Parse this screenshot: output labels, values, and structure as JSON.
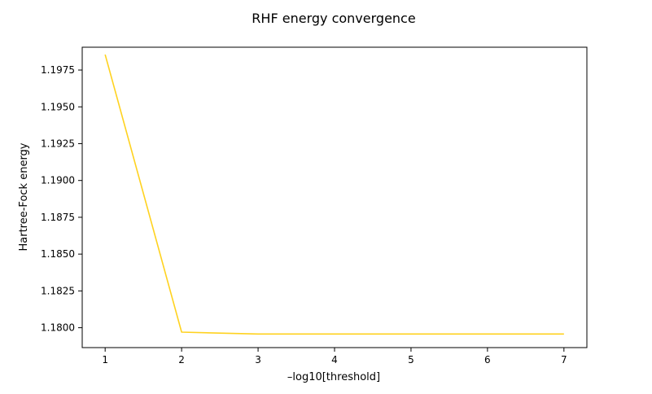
{
  "chart_data": {
    "type": "line",
    "title": "RHF energy convergence",
    "xlabel": "–log10[threshold]",
    "ylabel": "Hartree-Fock energy",
    "xlim": [
      0.7,
      7.3
    ],
    "ylim": [
      1.17865,
      1.19905
    ],
    "x_ticks": [
      1,
      2,
      3,
      4,
      5,
      6,
      7
    ],
    "x_tick_labels": [
      "1",
      "2",
      "3",
      "4",
      "5",
      "6",
      "7"
    ],
    "y_ticks": [
      1.18,
      1.1825,
      1.185,
      1.1875,
      1.19,
      1.1925,
      1.195,
      1.1975
    ],
    "y_tick_labels": [
      "1.1800",
      "1.1825",
      "1.1850",
      "1.1875",
      "1.1900",
      "1.1925",
      "1.1950",
      "1.1975"
    ],
    "grid": false,
    "legend": "none",
    "series": [
      {
        "x": [
          1,
          2,
          3,
          4,
          5,
          6,
          7
        ],
        "y": [
          1.19855,
          1.1797,
          1.17957,
          1.17957,
          1.17957,
          1.17957,
          1.17957
        ],
        "color": "#ffd21f"
      }
    ]
  }
}
